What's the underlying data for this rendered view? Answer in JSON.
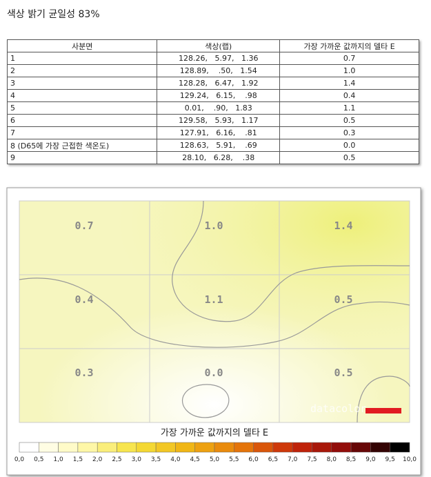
{
  "header": {
    "title": "색상 밝기 균일성 83%"
  },
  "table": {
    "columns": [
      "사분면",
      "색상(랩)",
      "가장 가까운 값까지의 델타 E"
    ],
    "rows": [
      [
        "1",
        "128.26,   5.97,   1.36",
        "0.7"
      ],
      [
        "2",
        "128.89,    .50,   1.54",
        "1.0"
      ],
      [
        "3",
        "128.28,   6.47,   1.92",
        "1.4"
      ],
      [
        "4",
        "129.24,   6.15,    .98",
        "0.4"
      ],
      [
        "5",
        "0.01,    .90,   1.83",
        "1.1"
      ],
      [
        "6",
        "129.58,   5.93,   1.17",
        "0.5"
      ],
      [
        "7",
        "127.91,   6.16,    .81",
        "0.3"
      ],
      [
        "8 (D65에 가장 근접한 색온도)",
        "128.63,   5.91,    .69",
        "0.0"
      ],
      [
        "9",
        "28.10,   6.28,    .38",
        "0.5"
      ]
    ]
  },
  "heatmap": {
    "cells": [
      [
        "0.7",
        "1.0",
        "1.4"
      ],
      [
        "0.4",
        "1.1",
        "0.5"
      ],
      [
        "0.3",
        "0.0",
        "0.5"
      ]
    ],
    "watermark": "datacolor",
    "colorbar": {
      "title": "가장 가까운 값까지의 델타 E",
      "labels": [
        "0,0",
        "0,5",
        "1,0",
        "1,5",
        "2,0",
        "2,5",
        "3,0",
        "3,5",
        "4,0",
        "4,5",
        "5,0",
        "5,5",
        "6,0",
        "6,5",
        "7,0",
        "7,5",
        "8,0",
        "8,5",
        "9,0",
        "9,5",
        "10,0"
      ]
    }
  }
}
